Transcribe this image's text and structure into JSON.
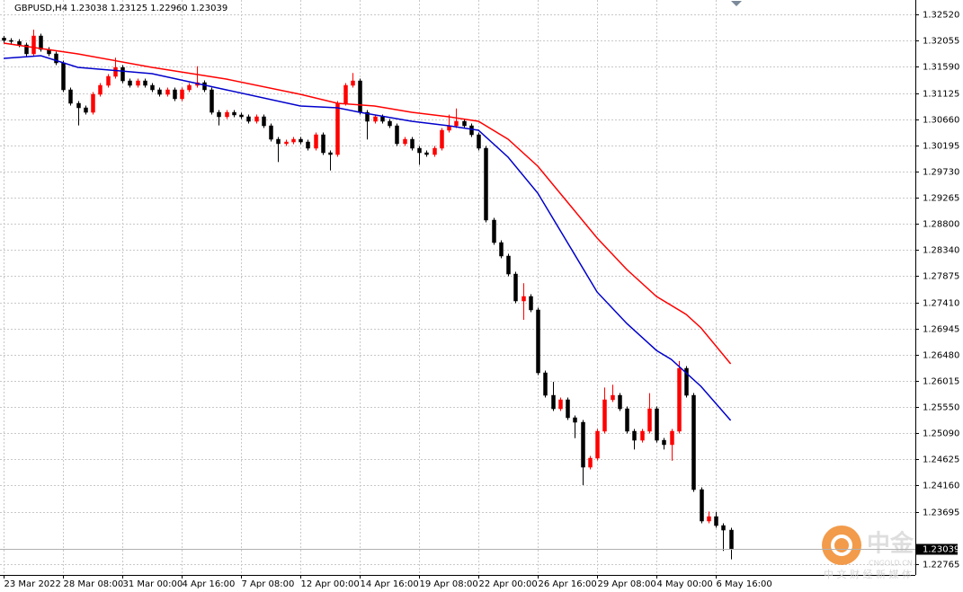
{
  "chart_data": {
    "type": "candlestick",
    "title": "GBPUSD,H4  1.23038 1.23125 1.22960 1.23039",
    "up_color": "#ff0000",
    "down_color": "#000000",
    "grid": true,
    "xlim": [
      -0.5,
      122.9
    ],
    "xticks": [
      {
        "value": 0,
        "label": "23 Mar 2022"
      },
      {
        "value": 8,
        "label": "28 Mar 08:00"
      },
      {
        "value": 16,
        "label": "31 Mar 00:00"
      },
      {
        "value": 24,
        "label": "4 Apr 16:00"
      },
      {
        "value": 32,
        "label": "7 Apr 08:00"
      },
      {
        "value": 40,
        "label": "12 Apr 00:00"
      },
      {
        "value": 48,
        "label": "14 Apr 16:00"
      },
      {
        "value": 56,
        "label": "19 Apr 08:00"
      },
      {
        "value": 64,
        "label": "22 Apr 00:00"
      },
      {
        "value": 72,
        "label": "26 Apr 16:00"
      },
      {
        "value": 80,
        "label": "29 Apr 08:00"
      },
      {
        "value": 88,
        "label": "4 May 00:00"
      },
      {
        "value": 96,
        "label": "6 May 16:00"
      }
    ],
    "ylim": [
      1.22574,
      1.32775
    ],
    "yticks": [
      {
        "value": 1.3252,
        "label": "1.32520"
      },
      {
        "value": 1.32055,
        "label": "1.32055"
      },
      {
        "value": 1.3159,
        "label": "1.31590"
      },
      {
        "value": 1.31125,
        "label": "1.31125"
      },
      {
        "value": 1.3066,
        "label": "1.30660"
      },
      {
        "value": 1.30195,
        "label": "1.30195"
      },
      {
        "value": 1.2973,
        "label": "1.29730"
      },
      {
        "value": 1.29265,
        "label": "1.29265"
      },
      {
        "value": 1.288,
        "label": "1.28800"
      },
      {
        "value": 1.2834,
        "label": "1.28340"
      },
      {
        "value": 1.27875,
        "label": "1.27875"
      },
      {
        "value": 1.2741,
        "label": "1.27410"
      },
      {
        "value": 1.26945,
        "label": "1.26945"
      },
      {
        "value": 1.2648,
        "label": "1.26480"
      },
      {
        "value": 1.26015,
        "label": "1.26015"
      },
      {
        "value": 1.2555,
        "label": "1.25550"
      },
      {
        "value": 1.2509,
        "label": "1.25090"
      },
      {
        "value": 1.24625,
        "label": "1.24625"
      },
      {
        "value": 1.2416,
        "label": "1.24160"
      },
      {
        "value": 1.23695,
        "label": "1.23695"
      },
      {
        "value": 1.22765,
        "label": "1.22765"
      }
    ],
    "last_price": {
      "value": 1.23039,
      "label": "1.23039"
    },
    "open": [
      1.321,
      1.32058,
      1.3204,
      1.31978,
      1.31819,
      1.32137,
      1.31898,
      1.31819,
      1.31659,
      1.31181,
      1.30942,
      1.30862,
      1.30782,
      1.31101,
      1.31261,
      1.3142,
      1.31579,
      1.3134,
      1.31261,
      1.3134,
      1.31261,
      1.31181,
      1.31101,
      1.31181,
      1.31022,
      1.31181,
      1.31261,
      1.31309,
      1.31181,
      1.30782,
      1.30703,
      1.30782,
      1.30735,
      1.30703,
      1.30623,
      1.30703,
      1.30543,
      1.30304,
      1.30225,
      1.30256,
      1.30304,
      1.30256,
      1.30145,
      1.30384,
      1.30065,
      1.30033,
      1.30942,
      1.31261,
      1.3134,
      1.30782,
      1.30623,
      1.30703,
      1.30623,
      1.30543,
      1.30225,
      1.30304,
      1.30145,
      1.30065,
      1.30033,
      1.30145,
      1.30464,
      1.30543,
      1.30623,
      1.30543,
      1.30384,
      1.30145,
      1.2887,
      1.28471,
      1.28232,
      1.27913,
      1.27435,
      1.27515,
      1.27276,
      1.2616,
      1.25761,
      1.25522,
      1.25682,
      1.25363,
      1.25283,
      1.24486,
      1.24646,
      1.25124,
      1.25682,
      1.25761,
      1.25522,
      1.25124,
      1.24964,
      1.25124,
      1.25522,
      1.24964,
      1.24885,
      1.25124,
      1.2624,
      1.25761,
      1.24088,
      1.2353,
      1.23609,
      1.2345,
      1.2337
    ],
    "high": [
      1.3214,
      1.32098,
      1.3208,
      1.32018,
      1.3225,
      1.32177,
      1.31938,
      1.31859,
      1.31699,
      1.31221,
      1.30982,
      1.30902,
      1.31141,
      1.31301,
      1.3146,
      1.3175,
      1.31619,
      1.3138,
      1.3138,
      1.3138,
      1.31301,
      1.31221,
      1.31221,
      1.31221,
      1.31221,
      1.31301,
      1.316,
      1.31349,
      1.31221,
      1.30822,
      1.30822,
      1.30822,
      1.30775,
      1.30743,
      1.30743,
      1.30743,
      1.30583,
      1.30344,
      1.30296,
      1.30344,
      1.30344,
      1.30296,
      1.30424,
      1.30424,
      1.30105,
      1.30982,
      1.31301,
      1.3148,
      1.3138,
      1.30822,
      1.30743,
      1.30743,
      1.30663,
      1.30583,
      1.30344,
      1.30344,
      1.30185,
      1.30105,
      1.30185,
      1.30504,
      1.3074,
      1.3085,
      1.30663,
      1.30583,
      1.30424,
      1.30185,
      1.2891,
      1.28511,
      1.28272,
      1.27953,
      1.2775,
      1.27555,
      1.27316,
      1.262,
      1.26,
      1.25722,
      1.25722,
      1.25403,
      1.25323,
      1.24686,
      1.25164,
      1.259,
      1.2595,
      1.25801,
      1.25562,
      1.25164,
      1.25164,
      1.258,
      1.25562,
      1.25004,
      1.25164,
      1.2637,
      1.2628,
      1.25801,
      1.24128,
      1.237,
      1.2369,
      1.2349,
      1.2341
    ],
    "low": [
      1.32018,
      1.32,
      1.31938,
      1.31779,
      1.31779,
      1.31858,
      1.31779,
      1.31619,
      1.31141,
      1.30902,
      1.3055,
      1.30742,
      1.30742,
      1.31061,
      1.31221,
      1.3138,
      1.313,
      1.31221,
      1.31221,
      1.31221,
      1.31141,
      1.31061,
      1.31061,
      1.30982,
      1.30982,
      1.31141,
      1.31221,
      1.31141,
      1.30742,
      1.3055,
      1.30663,
      1.30695,
      1.30663,
      1.30583,
      1.30583,
      1.30503,
      1.30264,
      1.299,
      1.30185,
      1.30216,
      1.30216,
      1.30105,
      1.30105,
      1.30025,
      1.2975,
      1.29993,
      1.30902,
      1.31221,
      1.30742,
      1.303,
      1.30583,
      1.30583,
      1.30503,
      1.30185,
      1.30185,
      1.30105,
      1.2985,
      1.29993,
      1.29993,
      1.30105,
      1.30424,
      1.30503,
      1.30503,
      1.30344,
      1.30105,
      1.2883,
      1.28431,
      1.28192,
      1.27873,
      1.27395,
      1.271,
      1.27236,
      1.2612,
      1.25721,
      1.25482,
      1.25482,
      1.25323,
      1.25,
      1.24167,
      1.24446,
      1.24606,
      1.25084,
      1.25642,
      1.25482,
      1.25084,
      1.248,
      1.24924,
      1.25084,
      1.24924,
      1.248,
      1.246,
      1.25084,
      1.25721,
      1.24048,
      1.2349,
      1.2349,
      1.2341,
      1.23,
      1.2285
    ],
    "close": [
      1.32058,
      1.3204,
      1.31978,
      1.31819,
      1.32137,
      1.31898,
      1.31819,
      1.31659,
      1.31181,
      1.30942,
      1.30862,
      1.30782,
      1.31101,
      1.31261,
      1.3142,
      1.31579,
      1.3134,
      1.31261,
      1.3134,
      1.31261,
      1.31181,
      1.31101,
      1.31181,
      1.31022,
      1.31181,
      1.31261,
      1.31309,
      1.31181,
      1.30782,
      1.30703,
      1.30782,
      1.30735,
      1.30703,
      1.30623,
      1.30703,
      1.30543,
      1.30304,
      1.30225,
      1.30256,
      1.30304,
      1.30256,
      1.30145,
      1.30384,
      1.30065,
      1.30033,
      1.30942,
      1.31261,
      1.3134,
      1.30782,
      1.30623,
      1.30703,
      1.30623,
      1.30543,
      1.30225,
      1.30304,
      1.30145,
      1.30065,
      1.30033,
      1.30145,
      1.30464,
      1.30543,
      1.30623,
      1.30543,
      1.30384,
      1.30145,
      1.2887,
      1.28471,
      1.28232,
      1.27913,
      1.27435,
      1.27515,
      1.27276,
      1.2616,
      1.25761,
      1.25522,
      1.25682,
      1.25363,
      1.25283,
      1.24486,
      1.24646,
      1.25124,
      1.25682,
      1.25761,
      1.25522,
      1.25124,
      1.24964,
      1.25124,
      1.25522,
      1.24964,
      1.24885,
      1.25124,
      1.2624,
      1.25761,
      1.24088,
      1.2353,
      1.23609,
      1.2345,
      1.2337,
      1.23039
    ],
    "lines": [
      {
        "color": "#ff0000",
        "x": [
          0,
          10,
          20,
          30,
          40,
          45,
          50,
          55,
          60,
          64,
          68,
          72,
          76,
          80,
          84,
          88,
          92,
          94,
          98
        ],
        "values": [
          1.3201,
          1.31819,
          1.31579,
          1.31372,
          1.31101,
          1.30942,
          1.30894,
          1.30782,
          1.30703,
          1.30623,
          1.30304,
          1.29826,
          1.29189,
          1.28551,
          1.27993,
          1.27515,
          1.27196,
          1.26957,
          1.26319
        ]
      },
      {
        "color": "#0000cc",
        "x": [
          0,
          5,
          10,
          20,
          30,
          40,
          45,
          48,
          55,
          60,
          64,
          68,
          72,
          76,
          80,
          84,
          88,
          90,
          94,
          98
        ],
        "values": [
          1.31739,
          1.31787,
          1.31579,
          1.31468,
          1.31181,
          1.30894,
          1.30862,
          1.30782,
          1.30623,
          1.30543,
          1.30464,
          1.29985,
          1.29348,
          1.28471,
          1.27594,
          1.27036,
          1.26557,
          1.26398,
          1.2592,
          1.25315
        ]
      }
    ]
  },
  "watermark": {
    "brand": "中金",
    "site": "CNGOLD.CN",
    "tagline": "中 文 财 经 新 媒 体"
  }
}
